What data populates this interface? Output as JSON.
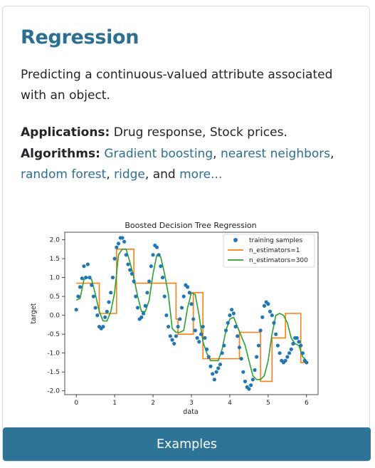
{
  "card": {
    "title": "Regression",
    "description": "Predicting a continuous-valued attribute associated with an object.",
    "applications_label": "Applications:",
    "applications_text": " Drug response, Stock prices.",
    "algorithms_label": "Algorithms:",
    "algorithm_links": [
      "Gradient boosting",
      "nearest neighbors",
      "random forest",
      "ridge"
    ],
    "and_text": ", and ",
    "more_link": "more...",
    "button_label": "Examples"
  },
  "colors": {
    "title": "#2d6f91",
    "link": "#2d6f91",
    "button": "#2e7497",
    "samples": "#1f77b4",
    "est1": "#ff7f0e",
    "est300": "#2ca02c"
  },
  "chart_data": {
    "type": "scatter",
    "title": "Boosted Decision Tree Regression",
    "xlabel": "data",
    "ylabel": "target",
    "xlim": [
      -0.3,
      6.3
    ],
    "ylim": [
      -2.1,
      2.2
    ],
    "xticks": [
      "0",
      "1",
      "2",
      "3",
      "4",
      "5",
      "6"
    ],
    "yticks": [
      "2.0",
      "1.5",
      "1.0",
      "0.5",
      "0.0",
      "-0.5",
      "-1.0",
      "-1.5",
      "-2.0"
    ],
    "legend": {
      "position": "top-right",
      "entries": [
        "training samples",
        "n_estimators=1",
        "n_estimators=300"
      ]
    },
    "series": [
      {
        "name": "training samples",
        "kind": "scatter",
        "x": [
          0.0,
          0.05,
          0.1,
          0.15,
          0.2,
          0.25,
          0.3,
          0.35,
          0.4,
          0.45,
          0.5,
          0.55,
          0.6,
          0.65,
          0.7,
          0.75,
          0.8,
          0.85,
          0.9,
          0.95,
          1.0,
          1.05,
          1.1,
          1.15,
          1.2,
          1.25,
          1.3,
          1.35,
          1.4,
          1.45,
          1.5,
          1.55,
          1.6,
          1.65,
          1.7,
          1.75,
          1.8,
          1.85,
          1.9,
          1.95,
          2.0,
          2.05,
          2.1,
          2.15,
          2.2,
          2.25,
          2.3,
          2.35,
          2.4,
          2.45,
          2.5,
          2.55,
          2.6,
          2.65,
          2.7,
          2.75,
          2.8,
          2.85,
          2.9,
          2.95,
          3.0,
          3.05,
          3.1,
          3.15,
          3.2,
          3.25,
          3.3,
          3.35,
          3.4,
          3.45,
          3.5,
          3.55,
          3.6,
          3.65,
          3.7,
          3.75,
          3.8,
          3.85,
          3.9,
          3.95,
          4.0,
          4.05,
          4.1,
          4.15,
          4.2,
          4.25,
          4.3,
          4.35,
          4.4,
          4.45,
          4.5,
          4.55,
          4.6,
          4.65,
          4.7,
          4.75,
          4.8,
          4.85,
          4.9,
          4.95,
          5.0,
          5.05,
          5.1,
          5.15,
          5.2,
          5.25,
          5.3,
          5.35,
          5.4,
          5.45,
          5.5,
          5.55,
          5.6,
          5.65,
          5.7,
          5.75,
          5.8,
          5.85,
          5.9,
          5.95,
          6.0
        ],
        "y": [
          0.15,
          0.5,
          0.75,
          0.98,
          1.3,
          1.0,
          1.35,
          1.0,
          0.8,
          0.5,
          0.2,
          0.0,
          -0.3,
          -0.35,
          -0.3,
          -0.05,
          0.1,
          0.35,
          0.6,
          1.0,
          1.5,
          1.8,
          1.9,
          2.05,
          2.05,
          1.95,
          1.6,
          1.35,
          1.2,
          1.1,
          0.9,
          0.5,
          0.2,
          -0.1,
          -0.05,
          0.05,
          0.25,
          0.6,
          0.9,
          1.3,
          1.6,
          1.85,
          1.8,
          1.6,
          1.3,
          1.0,
          0.5,
          0.0,
          -0.3,
          -0.55,
          -0.65,
          -0.75,
          -0.55,
          -0.3,
          -0.1,
          0.2,
          0.5,
          0.8,
          0.75,
          0.6,
          0.3,
          -0.1,
          -0.4,
          -0.6,
          -0.7,
          -0.5,
          -0.3,
          -0.6,
          -0.9,
          -1.1,
          -1.35,
          -1.55,
          -1.7,
          -1.5,
          -1.4,
          -1.3,
          -1.0,
          -0.8,
          -0.4,
          -0.2,
          0.0,
          0.15,
          0.05,
          -0.3,
          -0.55,
          -0.85,
          -1.15,
          -1.5,
          -1.75,
          -1.9,
          -1.95,
          -1.85,
          -1.7,
          -1.45,
          -1.1,
          -0.8,
          -0.4,
          -0.05,
          0.25,
          0.35,
          0.3,
          0.1,
          0.0,
          -0.2,
          -0.5,
          -0.8,
          -1.0,
          -1.2,
          -1.25,
          -1.2,
          -1.1,
          -1.0,
          -0.9,
          -0.75,
          -0.6,
          -0.6,
          -0.7,
          -0.8,
          -1.0,
          -1.2,
          -1.25
        ]
      },
      {
        "name": "n_estimators=1",
        "kind": "step",
        "x": [
          0.0,
          0.6,
          0.6,
          1.05,
          1.05,
          1.5,
          1.5,
          2.6,
          2.6,
          2.65,
          2.65,
          3.05,
          3.05,
          3.3,
          3.3,
          3.6,
          3.6,
          4.25,
          4.25,
          4.8,
          4.8,
          5.1,
          5.1,
          5.45,
          5.45,
          5.85,
          5.85,
          6.0
        ],
        "y": [
          0.85,
          0.85,
          0.05,
          0.05,
          1.75,
          1.75,
          0.85,
          0.85,
          -0.1,
          -0.1,
          -0.5,
          -0.5,
          0.6,
          0.6,
          -1.15,
          -1.15,
          -1.15,
          -1.15,
          -0.45,
          -0.45,
          -1.75,
          -1.75,
          -0.6,
          -0.6,
          0.05,
          0.05,
          -1.25,
          -1.25
        ]
      },
      {
        "name": "n_estimators=300",
        "kind": "line",
        "x": [
          0.0,
          0.1,
          0.2,
          0.3,
          0.4,
          0.5,
          0.6,
          0.7,
          0.8,
          0.9,
          1.0,
          1.1,
          1.2,
          1.3,
          1.4,
          1.5,
          1.6,
          1.7,
          1.8,
          1.9,
          2.0,
          2.1,
          2.2,
          2.3,
          2.4,
          2.5,
          2.6,
          2.7,
          2.8,
          2.9,
          3.0,
          3.1,
          3.2,
          3.3,
          3.4,
          3.5,
          3.6,
          3.7,
          3.8,
          3.9,
          4.0,
          4.1,
          4.2,
          4.3,
          4.4,
          4.5,
          4.6,
          4.7,
          4.8,
          4.9,
          5.0,
          5.1,
          5.2,
          5.3,
          5.4,
          5.5,
          5.6,
          5.7,
          5.8,
          5.9,
          6.0
        ],
        "y": [
          0.4,
          0.45,
          0.95,
          1.0,
          0.95,
          0.55,
          0.1,
          -0.15,
          -0.15,
          0.1,
          0.6,
          1.6,
          1.75,
          1.75,
          1.4,
          1.0,
          0.5,
          0.1,
          0.1,
          0.4,
          1.1,
          1.6,
          1.55,
          1.1,
          0.55,
          -0.35,
          -0.45,
          -0.45,
          -0.4,
          0.2,
          0.6,
          0.55,
          0.0,
          -0.7,
          -1.0,
          -1.2,
          -1.2,
          -1.2,
          -0.9,
          -0.4,
          -0.1,
          -0.05,
          -0.3,
          -0.55,
          -0.8,
          -1.2,
          -1.6,
          -1.7,
          -1.7,
          -1.6,
          -1.2,
          -0.5,
          0.0,
          0.05,
          0.0,
          -0.2,
          -0.6,
          -0.75,
          -0.8,
          -1.1,
          -1.2
        ]
      }
    ]
  }
}
